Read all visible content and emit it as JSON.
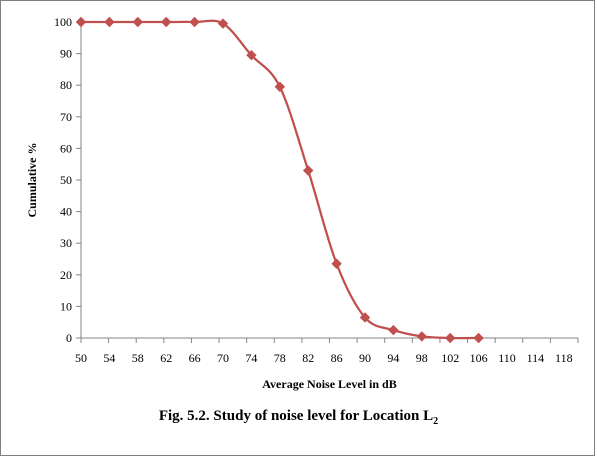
{
  "chart_data": {
    "type": "line",
    "xlabel": "Average Noise Level in dB",
    "ylabel": "Cumulative %",
    "x_ticks": [
      50,
      54,
      58,
      62,
      66,
      70,
      74,
      78,
      82,
      86,
      90,
      94,
      98,
      102,
      106,
      110,
      114,
      118
    ],
    "y_ticks": [
      0,
      10,
      20,
      30,
      40,
      50,
      60,
      70,
      80,
      90,
      100
    ],
    "xlim": [
      50,
      120
    ],
    "ylim": [
      0,
      100
    ],
    "grid": false,
    "series": [
      {
        "color": "#c0504d",
        "marker": "diamond",
        "smooth": true,
        "x": [
          50,
          54,
          58,
          62,
          66,
          70,
          74,
          78,
          82,
          86,
          90,
          94,
          98,
          102,
          106
        ],
        "y": [
          100,
          100,
          100,
          100,
          100,
          99.5,
          89.5,
          79.5,
          53,
          23.5,
          6.5,
          2.5,
          0.5,
          0,
          0
        ]
      }
    ]
  },
  "caption": {
    "text": "Fig. 5.2. Study of noise level for Location L",
    "subscript": "2"
  }
}
